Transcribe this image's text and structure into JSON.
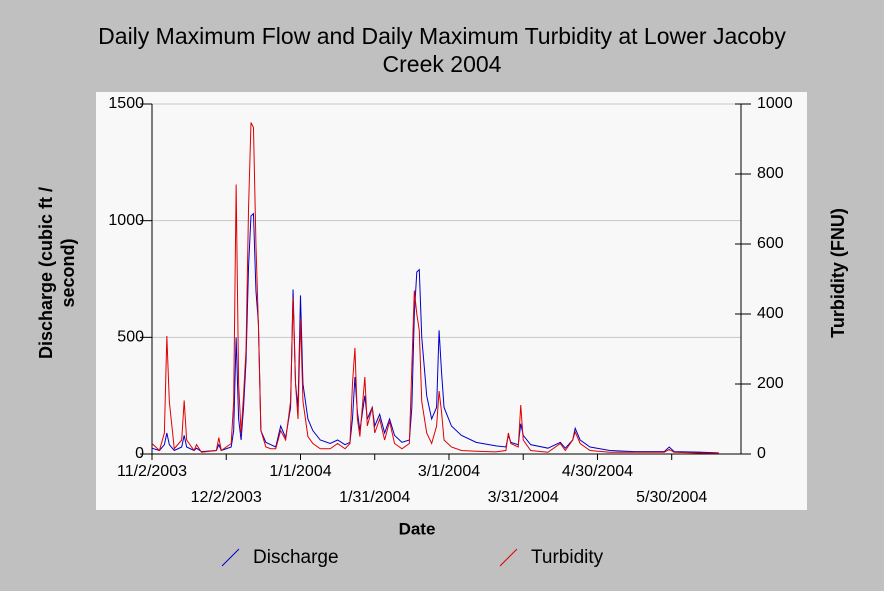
{
  "chart_data": {
    "type": "line",
    "title": "Daily Maximum Flow and Daily Maximum Turbidity at Lower Jacoby Creek 2004",
    "xlabel": "Date",
    "ylabel": "Discharge (cubic ft / second)",
    "y2label": "Turbidity (FNU)",
    "x": [
      "2003-11-02",
      "2003-11-05",
      "2003-11-07",
      "2003-11-08",
      "2003-11-09",
      "2003-11-11",
      "2003-11-14",
      "2003-11-15",
      "2003-11-16",
      "2003-11-19",
      "2003-11-20",
      "2003-11-22",
      "2003-11-28",
      "2003-11-29",
      "2003-11-30",
      "2003-12-04",
      "2003-12-05",
      "2003-12-06",
      "2003-12-07",
      "2003-12-08",
      "2003-12-09",
      "2003-12-10",
      "2003-12-11",
      "2003-12-12",
      "2003-12-13",
      "2003-12-14",
      "2003-12-15",
      "2003-12-16",
      "2003-12-18",
      "2003-12-20",
      "2003-12-22",
      "2003-12-24",
      "2003-12-26",
      "2003-12-28",
      "2003-12-29",
      "2003-12-30",
      "2003-12-31",
      "2004-01-01",
      "2004-01-02",
      "2004-01-04",
      "2004-01-06",
      "2004-01-09",
      "2004-01-13",
      "2004-01-16",
      "2004-01-19",
      "2004-01-21",
      "2004-01-22",
      "2004-01-23",
      "2004-01-24",
      "2004-01-25",
      "2004-01-27",
      "2004-01-28",
      "2004-01-30",
      "2004-01-31",
      "2004-02-02",
      "2004-02-04",
      "2004-02-06",
      "2004-02-08",
      "2004-02-11",
      "2004-02-14",
      "2004-02-15",
      "2004-02-16",
      "2004-02-17",
      "2004-02-18",
      "2004-02-19",
      "2004-02-21",
      "2004-02-23",
      "2004-02-25",
      "2004-02-26",
      "2004-02-27",
      "2004-02-28",
      "2004-03-02",
      "2004-03-06",
      "2004-03-12",
      "2004-03-20",
      "2004-03-24",
      "2004-03-25",
      "2004-03-26",
      "2004-03-29",
      "2004-03-30",
      "2004-03-31",
      "2004-04-03",
      "2004-04-10",
      "2004-04-15",
      "2004-04-17",
      "2004-04-20",
      "2004-04-21",
      "2004-04-23",
      "2004-04-27",
      "2004-05-05",
      "2004-05-15",
      "2004-05-27",
      "2004-05-29",
      "2004-05-31",
      "2004-06-10",
      "2004-06-18"
    ],
    "series": [
      {
        "name": "Discharge",
        "color": "#0000cc",
        "axis": "y",
        "values": [
          25,
          15,
          40,
          90,
          40,
          15,
          30,
          80,
          30,
          15,
          25,
          10,
          15,
          40,
          15,
          30,
          100,
          500,
          150,
          60,
          200,
          400,
          800,
          1020,
          1030,
          700,
          560,
          100,
          50,
          40,
          30,
          120,
          70,
          200,
          705,
          300,
          200,
          680,
          300,
          150,
          100,
          60,
          45,
          60,
          40,
          50,
          150,
          330,
          180,
          100,
          250,
          150,
          200,
          120,
          170,
          90,
          150,
          80,
          50,
          60,
          200,
          600,
          780,
          790,
          500,
          250,
          150,
          200,
          530,
          350,
          200,
          120,
          80,
          50,
          35,
          30,
          80,
          50,
          40,
          130,
          80,
          40,
          25,
          50,
          25,
          60,
          110,
          60,
          30,
          15,
          10,
          10,
          30,
          10,
          8,
          5
        ]
      },
      {
        "name": "Turbidity",
        "color": "#e00000",
        "axis": "y2",
        "values": [
          30,
          10,
          60,
          337,
          150,
          15,
          40,
          153,
          40,
          10,
          27,
          5,
          10,
          47,
          10,
          30,
          150,
          770,
          200,
          60,
          167,
          300,
          700,
          947,
          933,
          600,
          367,
          67,
          20,
          15,
          15,
          67,
          40,
          150,
          447,
          200,
          100,
          387,
          150,
          50,
          30,
          15,
          15,
          30,
          15,
          30,
          200,
          303,
          100,
          50,
          220,
          80,
          133,
          60,
          100,
          40,
          93,
          30,
          15,
          30,
          250,
          467,
          400,
          353,
          150,
          60,
          30,
          80,
          180,
          120,
          40,
          20,
          10,
          8,
          6,
          10,
          60,
          30,
          20,
          140,
          40,
          10,
          5,
          30,
          10,
          40,
          63,
          30,
          10,
          5,
          5,
          5,
          13,
          5,
          3,
          2
        ]
      }
    ],
    "xlim": [
      "2003-11-02",
      "2004-06-27"
    ],
    "xticks": [
      {
        "value": "2003-11-02",
        "label": "11/2/2003"
      },
      {
        "value": "2003-12-02",
        "label": "12/2/2003"
      },
      {
        "value": "2004-01-01",
        "label": "1/1/2004"
      },
      {
        "value": "2004-01-31",
        "label": "1/31/2004"
      },
      {
        "value": "2004-03-01",
        "label": "3/1/2004"
      },
      {
        "value": "2004-03-31",
        "label": "3/31/2004"
      },
      {
        "value": "2004-04-30",
        "label": "4/30/2004"
      },
      {
        "value": "2004-05-30",
        "label": "5/30/2004"
      }
    ],
    "ylim": [
      0,
      1500
    ],
    "yticks": [
      0,
      500,
      1000,
      1500
    ],
    "y2lim": [
      0,
      1000
    ],
    "y2ticks": [
      0,
      200,
      400,
      600,
      800,
      1000
    ],
    "grid": true,
    "legend": "bottom"
  }
}
